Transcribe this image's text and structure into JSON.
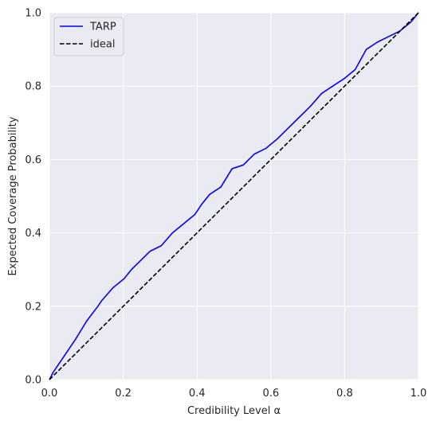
{
  "chart_data": {
    "type": "line",
    "title": "",
    "xlabel": "Credibility Level α",
    "ylabel": "Expected Coverage Probability",
    "xlim": [
      0.0,
      1.0
    ],
    "ylim": [
      0.0,
      1.0
    ],
    "xticks": [
      "0.0",
      "0.2",
      "0.4",
      "0.6",
      "0.8",
      "1.0"
    ],
    "yticks": [
      "0.0",
      "0.2",
      "0.4",
      "0.6",
      "0.8",
      "1.0"
    ],
    "grid": true,
    "legend_position": "top-left",
    "background_color": "#eaeaf2",
    "series": [
      {
        "name": "TARP",
        "color": "#0000ff",
        "style": "solid",
        "x": [
          0.0,
          0.0101,
          0.0404,
          0.0707,
          0.101,
          0.1313,
          0.1414,
          0.1717,
          0.202,
          0.2222,
          0.2424,
          0.2727,
          0.303,
          0.3333,
          0.3636,
          0.3939,
          0.4141,
          0.4343,
          0.4646,
          0.4949,
          0.5253,
          0.5556,
          0.5859,
          0.6162,
          0.6465,
          0.6768,
          0.7071,
          0.7374,
          0.7677,
          0.798,
          0.8283,
          0.8586,
          0.8889,
          0.9192,
          0.9495,
          0.9798,
          1.0
        ],
        "y": [
          0.0,
          0.02,
          0.065,
          0.11,
          0.16,
          0.2,
          0.215,
          0.25,
          0.275,
          0.3,
          0.32,
          0.35,
          0.365,
          0.4,
          0.425,
          0.45,
          0.48,
          0.505,
          0.525,
          0.575,
          0.585,
          0.615,
          0.63,
          0.655,
          0.685,
          0.715,
          0.745,
          0.78,
          0.8,
          0.82,
          0.845,
          0.9,
          0.92,
          0.935,
          0.95,
          0.975,
          1.0
        ]
      },
      {
        "name": "ideal",
        "color": "#000000",
        "style": "dashed",
        "x": [
          0.0,
          1.0
        ],
        "y": [
          0.0,
          1.0
        ]
      }
    ]
  }
}
